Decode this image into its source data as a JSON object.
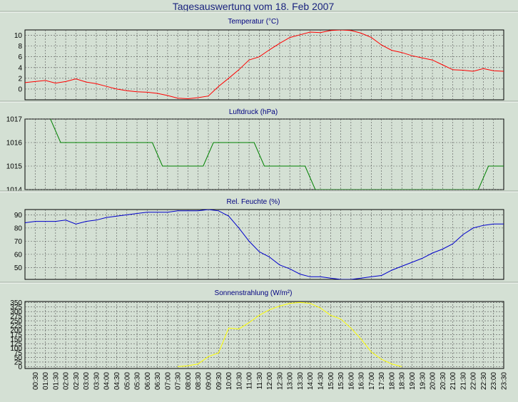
{
  "title": "Tagesauswertung vom 18. Feb 2007",
  "x_labels": [
    "00:30",
    "01:00",
    "01:30",
    "02:00",
    "02:30",
    "03:00",
    "03:30",
    "04:00",
    "04:30",
    "05:00",
    "05:30",
    "06:00",
    "06:30",
    "07:00",
    "07:30",
    "08:00",
    "08:30",
    "09:00",
    "09:30",
    "10:00",
    "10:30",
    "11:00",
    "11:30",
    "12:00",
    "12:30",
    "13:00",
    "13:30",
    "14:00",
    "14:30",
    "15:00",
    "15:30",
    "16:00",
    "16:30",
    "17:00",
    "17:30",
    "18:00",
    "18:30",
    "19:00",
    "19:30",
    "20:00",
    "20:30",
    "21:00",
    "21:30",
    "22:00",
    "22:30",
    "23:00",
    "23:30"
  ],
  "chart_data": [
    {
      "type": "line",
      "title": "Temperatur (°C)",
      "color": "#ff0000",
      "ylim": [
        -2,
        11
      ],
      "yticks": [
        0,
        2,
        4,
        6,
        8,
        10
      ],
      "xlim": [
        0,
        47
      ],
      "x": [
        0,
        1,
        2,
        3,
        4,
        5,
        6,
        7,
        8,
        9,
        10,
        11,
        12,
        13,
        14,
        15,
        16,
        17,
        18,
        19,
        20,
        21,
        22,
        23,
        24,
        25,
        26,
        27,
        28,
        29,
        30,
        31,
        32,
        33,
        34,
        35,
        36,
        37,
        38,
        39,
        40,
        41,
        42,
        43,
        44,
        45,
        46,
        47
      ],
      "values": [
        1.2,
        1.4,
        1.6,
        1.1,
        1.4,
        1.9,
        1.3,
        1.0,
        0.5,
        0.0,
        -0.3,
        -0.5,
        -0.6,
        -0.8,
        -1.2,
        -1.7,
        -1.8,
        -1.6,
        -1.3,
        0.5,
        2.0,
        3.6,
        5.4,
        6.0,
        7.3,
        8.5,
        9.6,
        10.1,
        10.6,
        10.5,
        10.9,
        11.0,
        10.9,
        10.4,
        9.6,
        8.2,
        7.2,
        6.8,
        6.2,
        5.8,
        5.4,
        4.5,
        3.6,
        3.5,
        3.3,
        3.8,
        3.4,
        3.3
      ]
    },
    {
      "type": "line",
      "title": "Luftdruck (hPa)",
      "color": "#008000",
      "ylim": [
        1014,
        1017
      ],
      "yticks": [
        1014,
        1015,
        1016,
        1017
      ],
      "xlim": [
        0,
        47
      ],
      "x": [
        2.5,
        3.5,
        12.5,
        13.5,
        17.5,
        18.5,
        22.5,
        23.5,
        27.5,
        28.5,
        44.5,
        45.5,
        47
      ],
      "values": [
        1017,
        1016,
        1016,
        1015,
        1015,
        1016,
        1016,
        1015,
        1015,
        1014,
        1014,
        1015,
        1015
      ]
    },
    {
      "type": "line",
      "title": "Rel. Feuchte (%)",
      "color": "#0000cc",
      "ylim": [
        41,
        94
      ],
      "yticks": [
        50,
        60,
        70,
        80,
        90
      ],
      "xlim": [
        0,
        47
      ],
      "x": [
        0,
        1,
        2,
        3,
        4,
        5,
        6,
        7,
        8,
        9,
        10,
        11,
        12,
        13,
        14,
        15,
        16,
        17,
        18,
        19,
        20,
        21,
        22,
        23,
        24,
        25,
        26,
        27,
        28,
        29,
        30,
        31,
        32,
        33,
        34,
        35,
        36,
        37,
        38,
        39,
        40,
        41,
        42,
        43,
        44,
        45,
        46,
        47
      ],
      "values": [
        84,
        85,
        85,
        85,
        86,
        83,
        85,
        86,
        88,
        89,
        90,
        91,
        92,
        92,
        92,
        93,
        93,
        93,
        94,
        93,
        89,
        80,
        70,
        62,
        58,
        52,
        49,
        45,
        43,
        43,
        42,
        41,
        41,
        42,
        43,
        44,
        48,
        51,
        54,
        57,
        61,
        64,
        68,
        75,
        80,
        82,
        83,
        83
      ]
    },
    {
      "type": "line",
      "title": "Sonnenstrahlung (W/m²)",
      "color": "#ffff00",
      "ylim": [
        -10,
        355
      ],
      "yticks": [
        0,
        25,
        50,
        75,
        100,
        125,
        150,
        175,
        200,
        225,
        250,
        275,
        300,
        325,
        350
      ],
      "xlim": [
        0,
        47
      ],
      "x": [
        15,
        16,
        17,
        18,
        19,
        20,
        21,
        22,
        23,
        24,
        25,
        26,
        27,
        28,
        29,
        30,
        31,
        32,
        33,
        34,
        35,
        36,
        37
      ],
      "values": [
        0,
        5,
        15,
        55,
        75,
        210,
        205,
        240,
        280,
        310,
        330,
        345,
        350,
        345,
        320,
        280,
        260,
        210,
        150,
        80,
        40,
        15,
        0
      ]
    }
  ]
}
